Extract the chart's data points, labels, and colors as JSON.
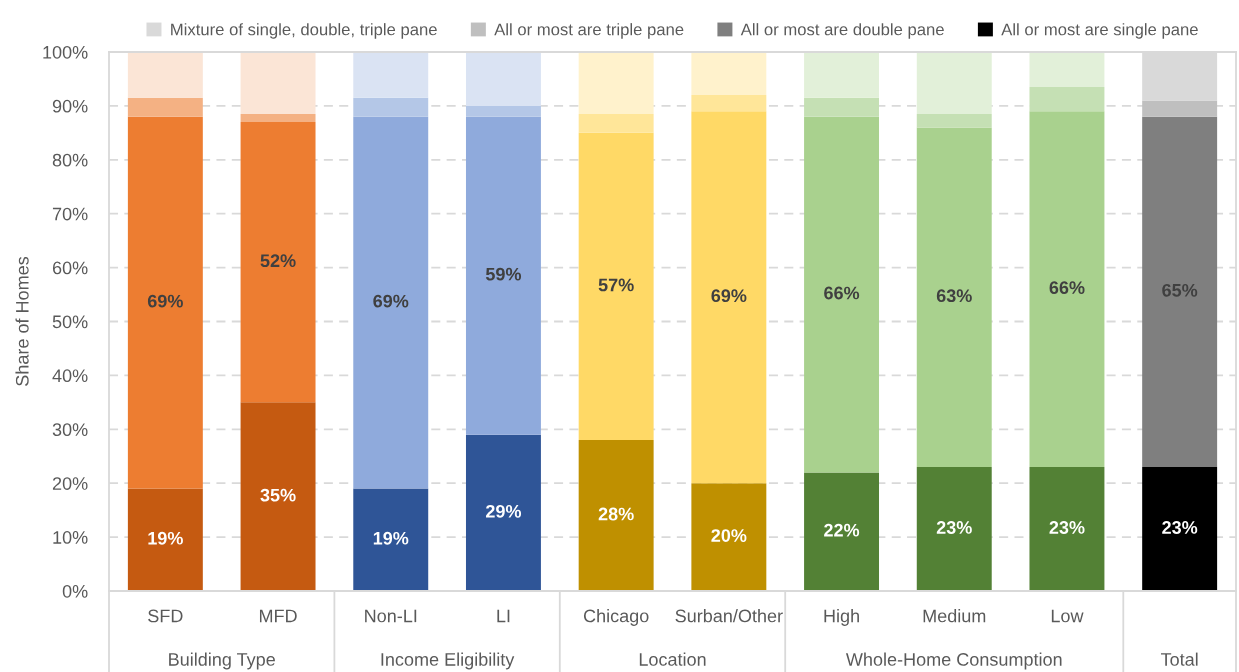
{
  "chart_data": {
    "type": "bar",
    "stacked": true,
    "ylabel": "Share of Homes",
    "categories": [
      "SFD",
      "MFD",
      "Non-LI",
      "LI",
      "Chicago",
      "Surban/Other",
      "High",
      "Medium",
      "Low",
      null
    ],
    "annotations": [
      "Building Type",
      "Income Eligibility",
      "Location",
      "Whole-Home Consumption",
      "Total"
    ],
    "series": [
      {
        "name": "All or most are single pane",
        "color": "#000000",
        "colors": [
          "#c55a11",
          "#c55a11",
          "#2f5597",
          "#2f5597",
          "#bf9000",
          "#bf9000",
          "#538135",
          "#538135",
          "#538135",
          "#000000"
        ],
        "values": [
          19,
          35,
          19,
          29,
          28,
          20,
          22,
          23,
          23,
          23
        ],
        "value_labels": [
          "19%",
          "35%",
          "19%",
          "29%",
          "28%",
          "20%",
          "22%",
          "23%",
          "23%",
          "23%"
        ]
      },
      {
        "name": "All or most are double pane",
        "color": "#7f7f7f",
        "colors": [
          "#ed7d31",
          "#ed7d31",
          "#8faadc",
          "#8faadc",
          "#ffd966",
          "#ffd966",
          "#a9d18e",
          "#a9d18e",
          "#a9d18e",
          "#7f7f7f"
        ],
        "values": [
          69,
          52,
          69,
          59,
          57,
          69,
          66,
          63,
          66,
          65
        ],
        "value_labels": [
          "69%",
          "52%",
          "69%",
          "59%",
          "57%",
          "69%",
          "66%",
          "63%",
          "66%",
          "65%"
        ]
      },
      {
        "name": "All or most are triple pane",
        "color": "#bfbfbf",
        "colors": [
          "#f4b183",
          "#f4b183",
          "#b4c7e7",
          "#b4c7e7",
          "#ffe699",
          "#ffe699",
          "#c5e0b4",
          "#c5e0b4",
          "#c5e0b4",
          "#bfbfbf"
        ],
        "values": [
          3.5,
          1.5,
          3.5,
          2,
          3.5,
          3,
          3.5,
          2.5,
          4.5,
          3
        ]
      },
      {
        "name": "Mixture of single, double, triple pane",
        "color": "#d9d9d9",
        "colors": [
          "#fbe5d6",
          "#fbe5d6",
          "#dae3f3",
          "#dae3f3",
          "#fff2cc",
          "#fff2cc",
          "#e2f0d9",
          "#e2f0d9",
          "#e2f0d9",
          "#d9d9d9"
        ],
        "values": [
          8.5,
          11.5,
          8.5,
          10,
          11.5,
          8,
          8.5,
          11.5,
          6.5,
          9
        ]
      }
    ],
    "ylim": [
      0,
      100
    ],
    "yticks": [
      {
        "value": 0,
        "label": "0%"
      },
      {
        "value": 10,
        "label": "10%"
      },
      {
        "value": 20,
        "label": "20%"
      },
      {
        "value": 30,
        "label": "30%"
      },
      {
        "value": 40,
        "label": "40%"
      },
      {
        "value": 50,
        "label": "50%"
      },
      {
        "value": 60,
        "label": "60%"
      },
      {
        "value": 70,
        "label": "70%"
      },
      {
        "value": 80,
        "label": "80%"
      },
      {
        "value": 90,
        "label": "90%"
      },
      {
        "value": 100,
        "label": "100%"
      }
    ],
    "grid": "y",
    "legend": "top"
  }
}
